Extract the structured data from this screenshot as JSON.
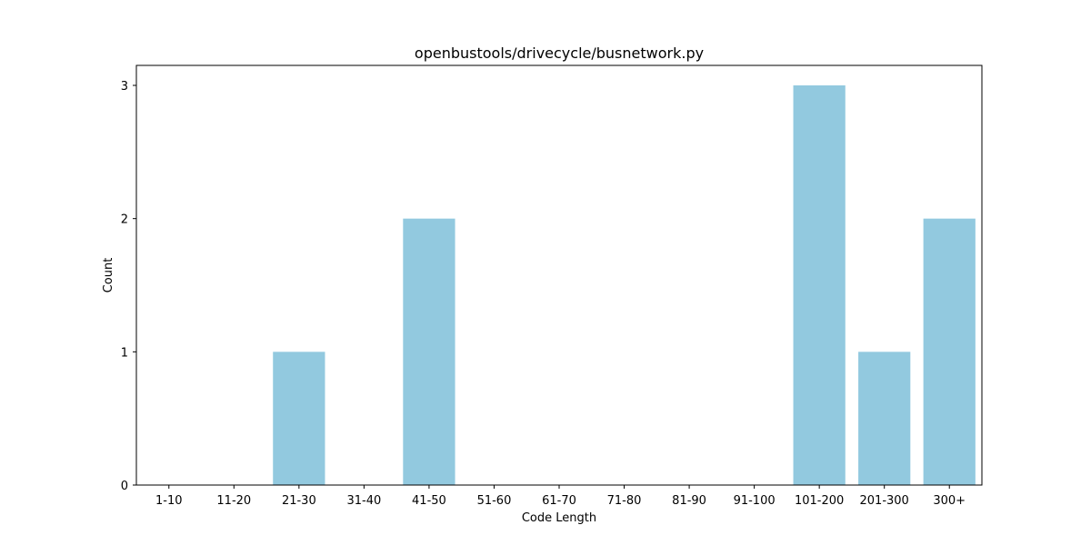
{
  "chart_data": {
    "type": "bar",
    "title": "openbustools/drivecycle/busnetwork.py",
    "xlabel": "Code Length",
    "ylabel": "Count",
    "categories": [
      "1-10",
      "11-20",
      "21-30",
      "31-40",
      "41-50",
      "51-60",
      "61-70",
      "71-80",
      "81-90",
      "91-100",
      "101-200",
      "201-300",
      "300+"
    ],
    "values": [
      0,
      0,
      1,
      0,
      2,
      0,
      0,
      0,
      0,
      0,
      3,
      1,
      2
    ],
    "ylim": [
      0,
      3.15
    ],
    "yticks": [
      0,
      1,
      2,
      3
    ],
    "bar_color": "#92c9df",
    "grid": false,
    "legend": "none"
  }
}
